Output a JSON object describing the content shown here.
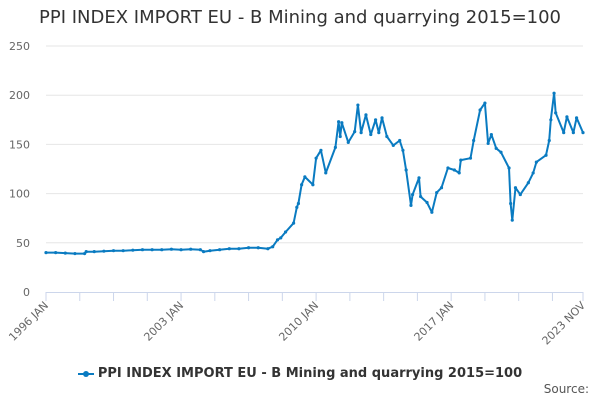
{
  "chart_data": {
    "type": "line",
    "title": "PPI INDEX IMPORT EU - B Mining and quarrying 2015=100",
    "xlabel": "",
    "ylabel": "",
    "ylim": [
      0,
      250
    ],
    "yticks": [
      "0",
      "50",
      "100",
      "150",
      "200",
      "250"
    ],
    "xlim": [
      "1996-01",
      "2023-11"
    ],
    "xtick_labels": [
      {
        "date": "1996-01",
        "label": "1996 JAN"
      },
      {
        "date": "2003-01",
        "label": "2003 JAN"
      },
      {
        "date": "2010-01",
        "label": "2010 JAN"
      },
      {
        "date": "2017-01",
        "label": "2017 JAN"
      },
      {
        "date": "2023-11",
        "label": "2023 NOV"
      }
    ],
    "grid": true,
    "legend": "bottom",
    "color": "#0a7bc1",
    "series": [
      {
        "name": "PPI INDEX IMPORT EU - B Mining and quarrying 2015=100",
        "points": [
          [
            "1996-01",
            40
          ],
          [
            "1996-07",
            40
          ],
          [
            "1997-01",
            39.5
          ],
          [
            "1997-07",
            39
          ],
          [
            "1998-01",
            39
          ],
          [
            "1998-02",
            41
          ],
          [
            "1998-07",
            41
          ],
          [
            "1999-01",
            41.5
          ],
          [
            "1999-07",
            42
          ],
          [
            "2000-01",
            42
          ],
          [
            "2000-07",
            42.5
          ],
          [
            "2001-01",
            43
          ],
          [
            "2001-07",
            43
          ],
          [
            "2002-01",
            43
          ],
          [
            "2002-07",
            43.5
          ],
          [
            "2003-01",
            43
          ],
          [
            "2003-07",
            43.5
          ],
          [
            "2004-01",
            43
          ],
          [
            "2004-03",
            41
          ],
          [
            "2004-07",
            42
          ],
          [
            "2005-01",
            43
          ],
          [
            "2005-07",
            44
          ],
          [
            "2006-01",
            44
          ],
          [
            "2006-07",
            45
          ],
          [
            "2007-01",
            45
          ],
          [
            "2007-07",
            44
          ],
          [
            "2007-10",
            46
          ],
          [
            "2008-01",
            53
          ],
          [
            "2008-03",
            55
          ],
          [
            "2008-06",
            61
          ],
          [
            "2008-11",
            70
          ],
          [
            "2009-01",
            86
          ],
          [
            "2009-02",
            90
          ],
          [
            "2009-04",
            109
          ],
          [
            "2009-06",
            117
          ],
          [
            "2009-11",
            109
          ],
          [
            "2010-01",
            136
          ],
          [
            "2010-04",
            144
          ],
          [
            "2010-07",
            121
          ],
          [
            "2011-01",
            147
          ],
          [
            "2011-03",
            173
          ],
          [
            "2011-04",
            158
          ],
          [
            "2011-05",
            172
          ],
          [
            "2011-09",
            152
          ],
          [
            "2012-01",
            163
          ],
          [
            "2012-03",
            190
          ],
          [
            "2012-05",
            162
          ],
          [
            "2012-08",
            180
          ],
          [
            "2012-11",
            160
          ],
          [
            "2013-02",
            175
          ],
          [
            "2013-04",
            162
          ],
          [
            "2013-06",
            177
          ],
          [
            "2013-09",
            158
          ],
          [
            "2014-01",
            149
          ],
          [
            "2014-05",
            154
          ],
          [
            "2014-07",
            144
          ],
          [
            "2014-09",
            124
          ],
          [
            "2014-12",
            88
          ],
          [
            "2015-01",
            99
          ],
          [
            "2015-05",
            116
          ],
          [
            "2015-06",
            97
          ],
          [
            "2015-10",
            91
          ],
          [
            "2016-01",
            81
          ],
          [
            "2016-04",
            101
          ],
          [
            "2016-07",
            106
          ],
          [
            "2016-11",
            126
          ],
          [
            "2017-03",
            124
          ],
          [
            "2017-06",
            121
          ],
          [
            "2017-07",
            134
          ],
          [
            "2018-01",
            136
          ],
          [
            "2018-03",
            154
          ],
          [
            "2018-07",
            185
          ],
          [
            "2018-10",
            192
          ],
          [
            "2018-12",
            151
          ],
          [
            "2019-02",
            160
          ],
          [
            "2019-05",
            146
          ],
          [
            "2019-08",
            142
          ],
          [
            "2020-01",
            126
          ],
          [
            "2020-02",
            90
          ],
          [
            "2020-03",
            73
          ],
          [
            "2020-05",
            106
          ],
          [
            "2020-08",
            99
          ],
          [
            "2021-01",
            111
          ],
          [
            "2021-04",
            121
          ],
          [
            "2021-06",
            132
          ],
          [
            "2021-12",
            139
          ],
          [
            "2022-02",
            154
          ],
          [
            "2022-03",
            175
          ],
          [
            "2022-05",
            202
          ],
          [
            "2022-06",
            182
          ],
          [
            "2022-11",
            162
          ],
          [
            "2023-01",
            178
          ],
          [
            "2023-05",
            162
          ],
          [
            "2023-07",
            177
          ],
          [
            "2023-11",
            162
          ]
        ]
      }
    ]
  },
  "legend": {
    "label": "PPI INDEX IMPORT EU - B Mining and quarrying 2015=100"
  },
  "source": {
    "label": "Source:"
  }
}
